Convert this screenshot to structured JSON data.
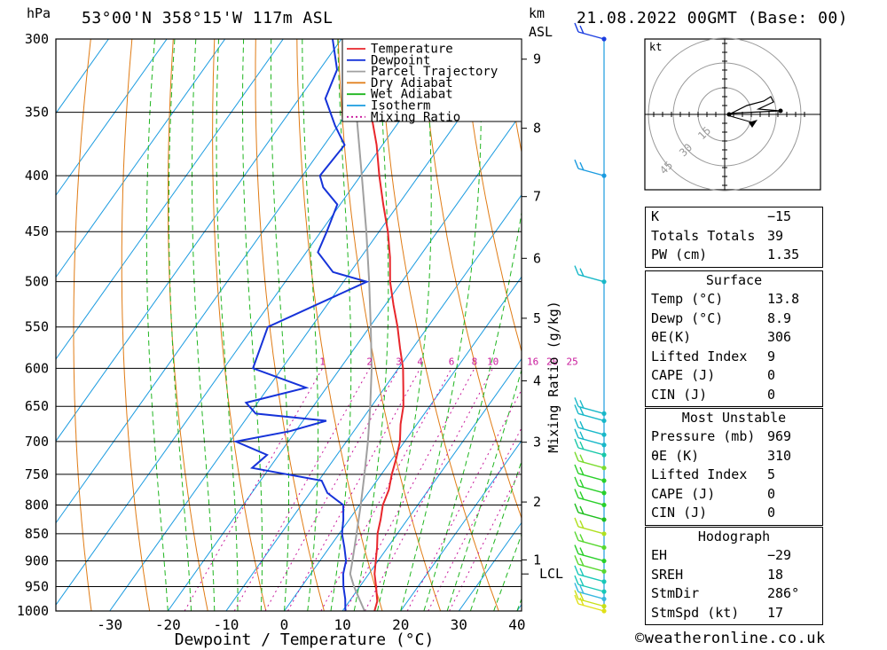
{
  "header": {
    "station": "53°00'N  358°15'W  117m  ASL",
    "datetime": "21.08.2022  00GMT  (Base: 00)",
    "pressure_unit": "hPa",
    "height_unit_km": "km",
    "height_unit_asl": "ASL"
  },
  "footer": {
    "xlabel": "Dewpoint / Temperature (°C)",
    "copyright": "©weatheronline.co.uk"
  },
  "colors": {
    "temperature": "#e8262b",
    "dewpoint": "#1633d9",
    "parcel": "#a0a0a0",
    "dry_adiabat": "#e07b14",
    "wet_adiabat": "#1fb51f",
    "isotherm": "#1a9be0",
    "mixing_ratio": "#c8189b",
    "wind_marker": "#1a9be0"
  },
  "chart_data": {
    "type": "skew-t",
    "xlabel": "Dewpoint / Temperature (°C)",
    "ylabel": "hPa",
    "mixing_ratio_axis_label": "Mixing Ratio (g/kg)",
    "pressure_levels": [
      300,
      350,
      400,
      450,
      500,
      550,
      600,
      650,
      700,
      750,
      800,
      850,
      900,
      950,
      1000
    ],
    "temperature_ticks": [
      -30,
      -20,
      -10,
      0,
      10,
      20,
      30,
      40
    ],
    "height_ticks_km": [
      {
        "km": "9",
        "p": 313
      },
      {
        "km": "8",
        "p": 362
      },
      {
        "km": "7",
        "p": 418
      },
      {
        "km": "6",
        "p": 476
      },
      {
        "km": "5",
        "p": 540
      },
      {
        "km": "4",
        "p": 616
      },
      {
        "km": "3",
        "p": 701
      },
      {
        "km": "2",
        "p": 795
      },
      {
        "km": "1",
        "p": 898
      }
    ],
    "lcl": {
      "label": "LCL",
      "p": 925
    },
    "legend": [
      "Temperature",
      "Dewpoint",
      "Parcel Trajectory",
      "Dry Adiabat",
      "Wet Adiabat",
      "Isotherm",
      "Mixing Ratio"
    ],
    "legend_placement": "top-right",
    "mixing_ratio_labels": [
      "1",
      "2",
      "3",
      "4",
      "6",
      "8",
      "10",
      "16",
      "20",
      "25"
    ],
    "mixing_ratio_values": [
      1,
      2,
      3,
      4,
      6,
      8,
      10,
      16,
      20,
      25
    ],
    "series": [
      {
        "name": "Temperature",
        "points": [
          [
            1000,
            15.5
          ],
          [
            980,
            14.8
          ],
          [
            950,
            12.8
          ],
          [
            925,
            11.0
          ],
          [
            900,
            9.6
          ],
          [
            875,
            8.2
          ],
          [
            850,
            6.6
          ],
          [
            825,
            5.4
          ],
          [
            800,
            4.0
          ],
          [
            775,
            3.2
          ],
          [
            750,
            1.8
          ],
          [
            725,
            0.6
          ],
          [
            700,
            -0.8
          ],
          [
            675,
            -2.8
          ],
          [
            650,
            -4.5
          ],
          [
            625,
            -6.8
          ],
          [
            600,
            -9.2
          ],
          [
            575,
            -12.2
          ],
          [
            550,
            -15.2
          ],
          [
            525,
            -18.6
          ],
          [
            500,
            -22.0
          ],
          [
            475,
            -25.0
          ],
          [
            450,
            -28.5
          ],
          [
            425,
            -32.6
          ],
          [
            400,
            -36.8
          ],
          [
            375,
            -41.0
          ],
          [
            350,
            -46.0
          ],
          [
            325,
            -51.0
          ],
          [
            300,
            -56.0
          ]
        ]
      },
      {
        "name": "Dewpoint",
        "points": [
          [
            1000,
            10.5
          ],
          [
            975,
            9.0
          ],
          [
            950,
            7.2
          ],
          [
            925,
            5.6
          ],
          [
            900,
            4.5
          ],
          [
            875,
            2.6
          ],
          [
            850,
            0.5
          ],
          [
            825,
            -1.0
          ],
          [
            800,
            -2.8
          ],
          [
            780,
            -7.0
          ],
          [
            760,
            -9.5
          ],
          [
            740,
            -23.0
          ],
          [
            720,
            -22.0
          ],
          [
            700,
            -29.0
          ],
          [
            685,
            -21.0
          ],
          [
            670,
            -16.0
          ],
          [
            660,
            -29.0
          ],
          [
            645,
            -32.0
          ],
          [
            625,
            -23.5
          ],
          [
            600,
            -35.0
          ],
          [
            550,
            -37.5
          ],
          [
            500,
            -26.0
          ],
          [
            490,
            -33.0
          ],
          [
            470,
            -38.0
          ],
          [
            450,
            -39.0
          ],
          [
            425,
            -40.5
          ],
          [
            410,
            -45.0
          ],
          [
            400,
            -47.0
          ],
          [
            375,
            -46.5
          ],
          [
            360,
            -50.5
          ],
          [
            340,
            -55.5
          ],
          [
            320,
            -57.0
          ],
          [
            300,
            -61.5
          ]
        ]
      },
      {
        "name": "Parcel Trajectory",
        "points": [
          [
            1000,
            13.8
          ],
          [
            950,
            9.0
          ],
          [
            925,
            6.8
          ],
          [
            900,
            5.6
          ],
          [
            850,
            3.0
          ],
          [
            800,
            0.2
          ],
          [
            750,
            -2.9
          ],
          [
            700,
            -6.3
          ],
          [
            650,
            -10.2
          ],
          [
            600,
            -14.6
          ],
          [
            550,
            -19.8
          ],
          [
            500,
            -25.6
          ],
          [
            450,
            -32.2
          ],
          [
            400,
            -39.8
          ],
          [
            350,
            -48.5
          ],
          [
            300,
            -58.5
          ]
        ]
      }
    ]
  },
  "hodograph": {
    "unit": "kt",
    "rings": [
      "15",
      "30",
      "45"
    ]
  },
  "indices": {
    "top": [
      {
        "label": "K",
        "value": "−15"
      },
      {
        "label": "Totals Totals",
        "value": "39"
      },
      {
        "label": "PW (cm)",
        "value": "1.35"
      }
    ],
    "surface": {
      "title": "Surface",
      "rows": [
        {
          "label": "Temp (°C)",
          "value": "13.8"
        },
        {
          "label": "Dewp (°C)",
          "value": "8.9"
        },
        {
          "label": "θE(K)",
          "value": "306"
        },
        {
          "label": "Lifted Index",
          "value": "9"
        },
        {
          "label": "CAPE (J)",
          "value": "0"
        },
        {
          "label": "CIN (J)",
          "value": "0"
        }
      ]
    },
    "most_unstable": {
      "title": "Most Unstable",
      "rows": [
        {
          "label": "Pressure (mb)",
          "value": "969"
        },
        {
          "label": "θE (K)",
          "value": "310"
        },
        {
          "label": "Lifted Index",
          "value": "5"
        },
        {
          "label": "CAPE (J)",
          "value": "0"
        },
        {
          "label": "CIN (J)",
          "value": "0"
        }
      ]
    },
    "hodograph_box": {
      "title": "Hodograph",
      "rows": [
        {
          "label": "EH",
          "value": "−29"
        },
        {
          "label": "SREH",
          "value": "18"
        },
        {
          "label": "StmDir",
          "value": "286°"
        },
        {
          "label": "StmSpd (kt)",
          "value": "17"
        }
      ]
    }
  }
}
